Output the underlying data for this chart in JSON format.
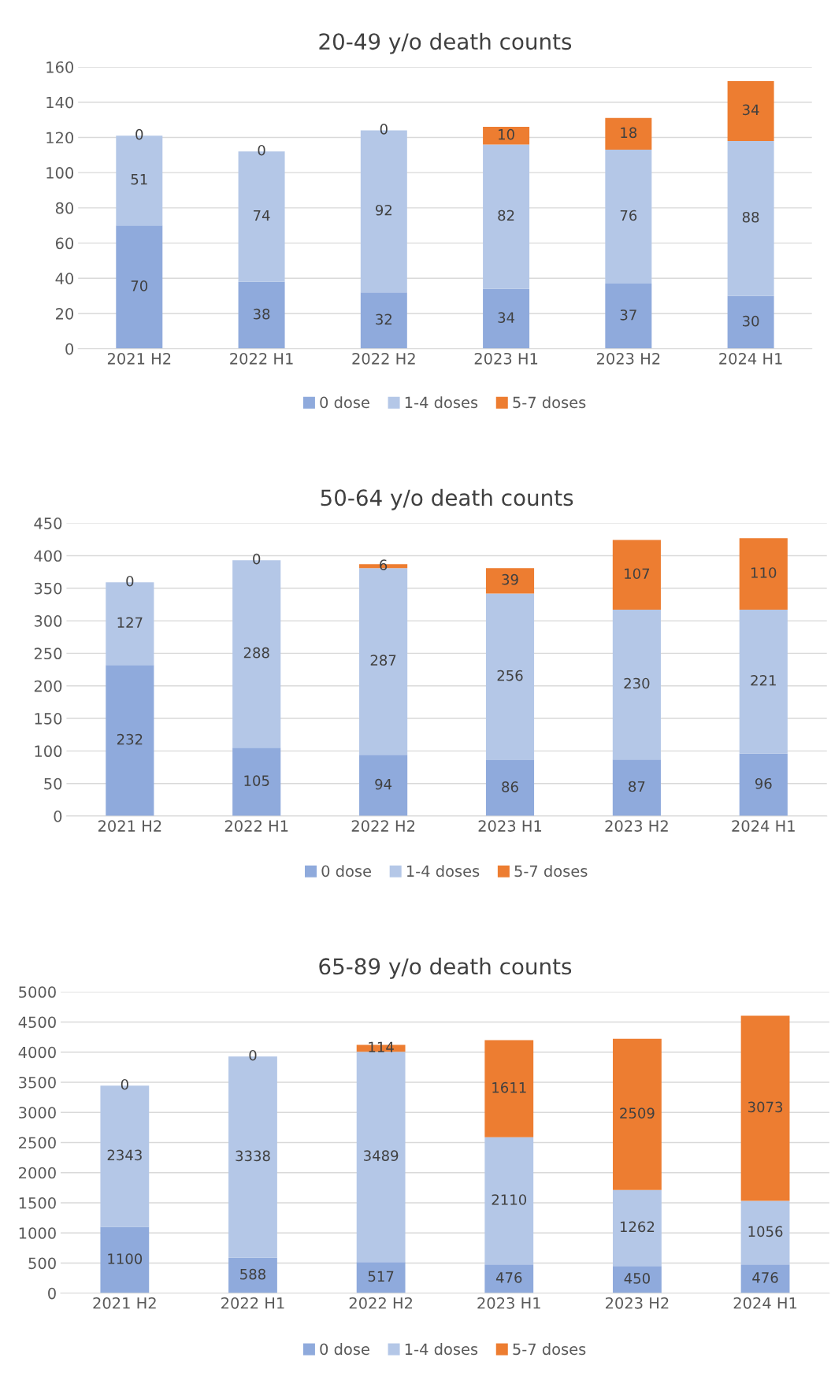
{
  "chart_data": [
    {
      "type": "bar",
      "title": "20-49 y/o death counts",
      "stacked": true,
      "data_labels": true,
      "grid": "y",
      "legend": "bottom",
      "categories": [
        "2021 H2",
        "2022 H1",
        "2022 H2",
        "2023 H1",
        "2023 H2",
        "2024 H1"
      ],
      "ylim": [
        0,
        160
      ],
      "yticks": [
        0,
        20,
        40,
        60,
        80,
        100,
        120,
        140,
        160
      ],
      "series": [
        {
          "name": "0 dose",
          "color": "#8faadc",
          "values": [
            70,
            38,
            32,
            34,
            37,
            30
          ]
        },
        {
          "name": "1-4 doses",
          "color": "#b4c7e7",
          "values": [
            51,
            74,
            92,
            82,
            76,
            88
          ]
        },
        {
          "name": "5-7 doses",
          "color": "#ed7d31",
          "values": [
            0,
            0,
            0,
            10,
            18,
            34
          ]
        }
      ]
    },
    {
      "type": "bar",
      "title": "50-64 y/o death counts",
      "stacked": true,
      "data_labels": true,
      "grid": "y",
      "legend": "bottom",
      "categories": [
        "2021 H2",
        "2022 H1",
        "2022 H2",
        "2023 H1",
        "2023 H2",
        "2024 H1"
      ],
      "ylim": [
        0,
        450
      ],
      "yticks": [
        0,
        50,
        100,
        150,
        200,
        250,
        300,
        350,
        400,
        450
      ],
      "series": [
        {
          "name": "0 dose",
          "color": "#8faadc",
          "values": [
            232,
            105,
            94,
            86,
            87,
            96
          ]
        },
        {
          "name": "1-4 doses",
          "color": "#b4c7e7",
          "values": [
            127,
            288,
            287,
            256,
            230,
            221
          ]
        },
        {
          "name": "5-7 doses",
          "color": "#ed7d31",
          "values": [
            0,
            0,
            6,
            39,
            107,
            110
          ]
        }
      ]
    },
    {
      "type": "bar",
      "title": "65-89 y/o death counts",
      "stacked": true,
      "data_labels": true,
      "grid": "y",
      "legend": "bottom",
      "categories": [
        "2021 H2",
        "2022 H1",
        "2022 H2",
        "2023 H1",
        "2023 H2",
        "2024 H1"
      ],
      "ylim": [
        0,
        5000
      ],
      "yticks": [
        0,
        500,
        1000,
        1500,
        2000,
        2500,
        3000,
        3500,
        4000,
        4500,
        5000
      ],
      "series": [
        {
          "name": "0 dose",
          "color": "#8faadc",
          "values": [
            1100,
            588,
            517,
            476,
            450,
            476
          ]
        },
        {
          "name": "1-4 doses",
          "color": "#b4c7e7",
          "values": [
            2343,
            3338,
            3489,
            2110,
            1262,
            1056
          ]
        },
        {
          "name": "5-7 doses",
          "color": "#ed7d31",
          "values": [
            0,
            0,
            114,
            1611,
            2509,
            3073
          ]
        }
      ]
    }
  ]
}
